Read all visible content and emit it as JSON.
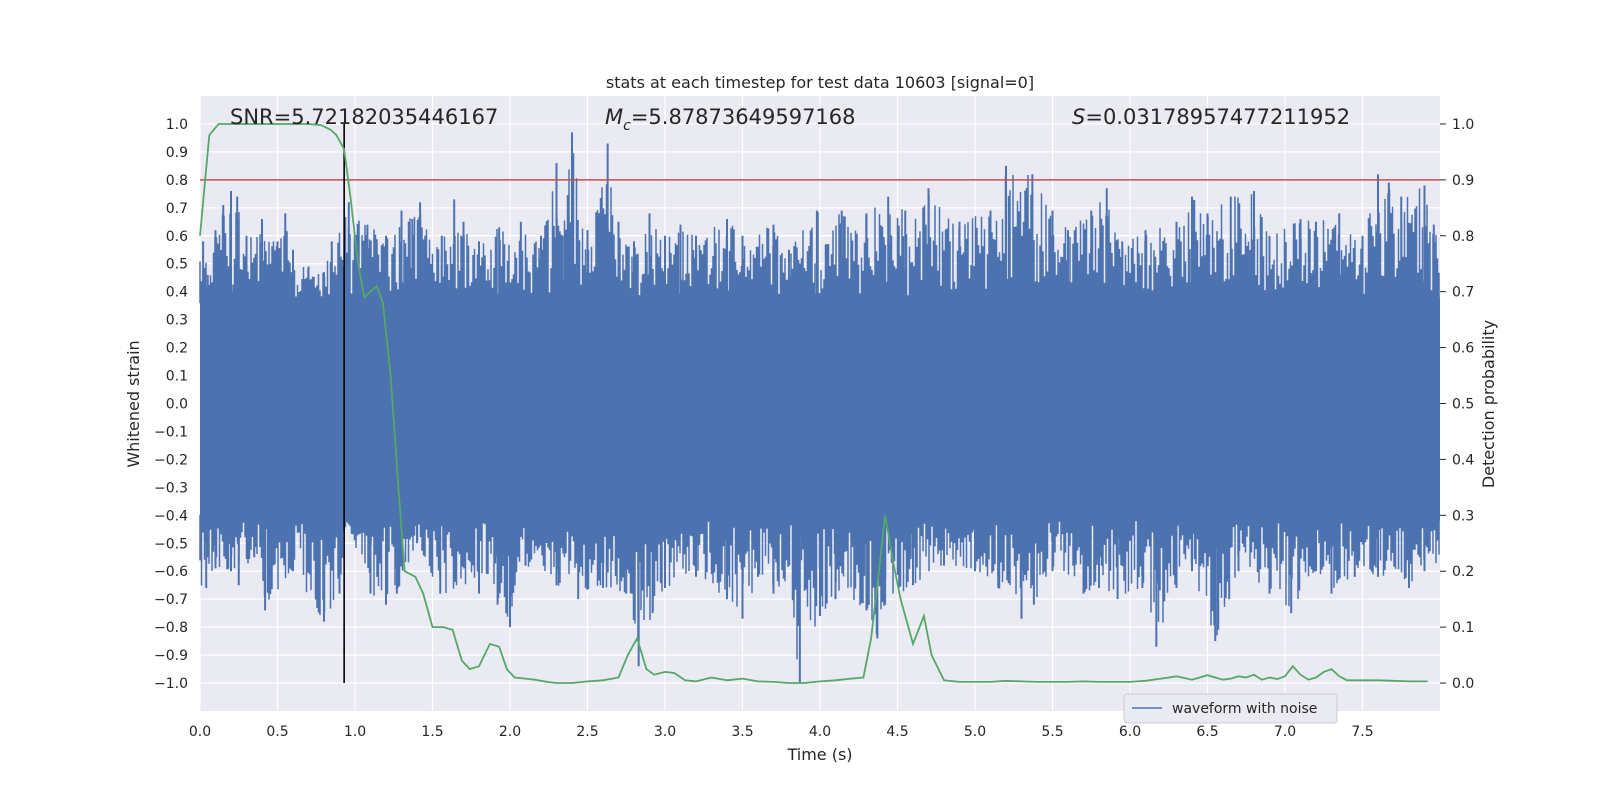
{
  "chart_data": {
    "type": "line",
    "title": "stats at each timestep for test data 10603 [signal=0]",
    "xlabel": "Time (s)",
    "ylabel": "Whitened strain",
    "y2label": "Detection probability",
    "xlim": [
      0.0,
      8.0
    ],
    "ylim": [
      -1.1,
      1.1
    ],
    "y2lim": [
      -0.05,
      1.05
    ],
    "grid": true,
    "x_ticks": [
      0.0,
      0.5,
      1.0,
      1.5,
      2.0,
      2.5,
      3.0,
      3.5,
      4.0,
      4.5,
      5.0,
      5.5,
      6.0,
      6.5,
      7.0,
      7.5
    ],
    "x_tick_labels": [
      "0.0",
      "0.5",
      "1.0",
      "1.5",
      "2.0",
      "2.5",
      "3.0",
      "3.5",
      "4.0",
      "4.5",
      "5.0",
      "5.5",
      "6.0",
      "6.5",
      "7.0",
      "7.5"
    ],
    "y_ticks": [
      1.0,
      0.9,
      0.8,
      0.7,
      0.6,
      0.5,
      0.4,
      0.3,
      0.2,
      0.1,
      0.0,
      -0.1,
      -0.2,
      -0.3,
      -0.4,
      -0.5,
      -0.6,
      -0.7,
      -0.8,
      -0.9,
      -1.0
    ],
    "y_tick_labels": [
      "1.0",
      "0.9",
      "0.8",
      "0.7",
      "0.6",
      "0.5",
      "0.4",
      "0.3",
      "0.2",
      "0.1",
      "0.0",
      "−0.1",
      "−0.2",
      "−0.3",
      "−0.4",
      "−0.5",
      "−0.6",
      "−0.7",
      "−0.8",
      "−0.9",
      "−1.0"
    ],
    "y2_ticks": [
      1.0,
      0.9,
      0.8,
      0.7,
      0.6,
      0.5,
      0.4,
      0.3,
      0.2,
      0.1,
      0.0
    ],
    "y2_tick_labels": [
      "1.0",
      "0.9",
      "0.8",
      "0.7",
      "0.6",
      "0.5",
      "0.4",
      "0.3",
      "0.2",
      "0.1",
      "0.0"
    ],
    "annotations": {
      "snr": "SNR=5.72182035446167",
      "mc_symbol": "M",
      "mc_sub": "c",
      "mc_value": "=5.87873649597168",
      "s_symbol": "S",
      "s_value": "=0.03178957477211952"
    },
    "legend": {
      "label": "waveform with noise",
      "placement": "lower-right"
    },
    "threshold_line": {
      "axis": "y2",
      "value": 0.9,
      "color": "#c44e52"
    },
    "vertical_marker": {
      "x": 0.93,
      "ymin": -1.0,
      "ymax": 1.0,
      "color": "#000000"
    },
    "waveform": {
      "name": "waveform with noise",
      "color": "#4c72b0",
      "core_band": [
        -0.42,
        0.38
      ],
      "upper_spikes": [
        [
          0.02,
          0.58
        ],
        [
          0.05,
          0.46
        ],
        [
          0.1,
          0.62
        ],
        [
          0.15,
          0.71
        ],
        [
          0.2,
          0.76
        ],
        [
          0.24,
          0.74
        ],
        [
          0.3,
          0.6
        ],
        [
          0.4,
          0.66
        ],
        [
          0.5,
          0.58
        ],
        [
          0.55,
          0.68
        ],
        [
          0.6,
          0.55
        ],
        [
          0.7,
          0.49
        ],
        [
          0.8,
          0.47
        ],
        [
          0.85,
          0.58
        ],
        [
          0.96,
          0.72
        ],
        [
          1.08,
          0.64
        ],
        [
          1.2,
          0.6
        ],
        [
          1.3,
          0.69
        ],
        [
          1.37,
          0.66
        ],
        [
          1.42,
          0.72
        ],
        [
          1.56,
          0.6
        ],
        [
          1.64,
          0.73
        ],
        [
          1.7,
          0.65
        ],
        [
          1.8,
          0.58
        ],
        [
          1.93,
          0.63
        ],
        [
          2.07,
          0.65
        ],
        [
          2.2,
          0.6
        ],
        [
          2.3,
          0.86
        ],
        [
          2.34,
          0.6
        ],
        [
          2.4,
          0.97
        ],
        [
          2.5,
          0.62
        ],
        [
          2.63,
          0.93
        ],
        [
          2.7,
          0.65
        ],
        [
          2.8,
          0.58
        ],
        [
          2.9,
          0.68
        ],
        [
          3.0,
          0.6
        ],
        [
          3.1,
          0.64
        ],
        [
          3.2,
          0.6
        ],
        [
          3.4,
          0.66
        ],
        [
          3.5,
          0.6
        ],
        [
          3.7,
          0.64
        ],
        [
          3.8,
          0.55
        ],
        [
          3.98,
          0.69
        ],
        [
          4.14,
          0.69
        ],
        [
          4.3,
          0.68
        ],
        [
          4.44,
          0.74
        ],
        [
          4.55,
          0.69
        ],
        [
          4.7,
          0.77
        ],
        [
          4.9,
          0.65
        ],
        [
          5.1,
          0.69
        ],
        [
          5.2,
          0.85
        ],
        [
          5.37,
          0.82
        ],
        [
          5.5,
          0.69
        ],
        [
          5.6,
          0.62
        ],
        [
          5.75,
          0.69
        ],
        [
          5.85,
          0.77
        ],
        [
          5.95,
          0.58
        ],
        [
          6.1,
          0.62
        ],
        [
          6.3,
          0.65
        ],
        [
          6.4,
          0.74
        ],
        [
          6.5,
          0.68
        ],
        [
          6.65,
          0.74
        ],
        [
          6.8,
          0.76
        ],
        [
          6.9,
          0.6
        ],
        [
          7.1,
          0.66
        ],
        [
          7.2,
          0.65
        ],
        [
          7.35,
          0.68
        ],
        [
          7.5,
          0.6
        ],
        [
          7.6,
          0.82
        ],
        [
          7.67,
          0.79
        ],
        [
          7.75,
          0.74
        ],
        [
          7.9,
          0.78
        ],
        [
          7.96,
          0.64
        ]
      ],
      "lower_spikes": [
        [
          0.04,
          -0.66
        ],
        [
          0.1,
          -0.59
        ],
        [
          0.2,
          -0.6
        ],
        [
          0.25,
          -0.65
        ],
        [
          0.35,
          -0.55
        ],
        [
          0.42,
          -0.74
        ],
        [
          0.6,
          -0.6
        ],
        [
          0.8,
          -0.78
        ],
        [
          0.9,
          -0.68
        ],
        [
          0.95,
          -0.42
        ],
        [
          1.1,
          -0.68
        ],
        [
          1.2,
          -0.72
        ],
        [
          1.27,
          -0.68
        ],
        [
          1.4,
          -0.5
        ],
        [
          1.55,
          -0.68
        ],
        [
          1.8,
          -0.68
        ],
        [
          1.92,
          -0.72
        ],
        [
          2.0,
          -0.8
        ],
        [
          2.1,
          -0.58
        ],
        [
          2.3,
          -0.65
        ],
        [
          2.44,
          -0.7
        ],
        [
          2.6,
          -0.66
        ],
        [
          2.75,
          -0.68
        ],
        [
          2.83,
          -0.94
        ],
        [
          2.92,
          -0.75
        ],
        [
          3.0,
          -0.66
        ],
        [
          3.2,
          -0.62
        ],
        [
          3.4,
          -0.7
        ],
        [
          3.5,
          -0.77
        ],
        [
          3.6,
          -0.62
        ],
        [
          3.7,
          -0.68
        ],
        [
          3.87,
          -1.0
        ],
        [
          4.0,
          -0.76
        ],
        [
          4.1,
          -0.7
        ],
        [
          4.3,
          -0.74
        ],
        [
          4.37,
          -0.84
        ],
        [
          4.42,
          -0.72
        ],
        [
          4.6,
          -0.65
        ],
        [
          4.8,
          -0.58
        ],
        [
          5.0,
          -0.6
        ],
        [
          5.15,
          -0.66
        ],
        [
          5.3,
          -0.77
        ],
        [
          5.38,
          -0.72
        ],
        [
          5.5,
          -0.6
        ],
        [
          5.7,
          -0.68
        ],
        [
          5.8,
          -0.66
        ],
        [
          5.92,
          -0.7
        ],
        [
          6.08,
          -0.66
        ],
        [
          6.17,
          -0.87
        ],
        [
          6.3,
          -0.66
        ],
        [
          6.4,
          -0.6
        ],
        [
          6.55,
          -0.85
        ],
        [
          6.64,
          -0.7
        ],
        [
          6.7,
          -0.6
        ],
        [
          6.9,
          -0.68
        ],
        [
          7.04,
          -0.75
        ],
        [
          7.2,
          -0.6
        ],
        [
          7.3,
          -0.68
        ],
        [
          7.45,
          -0.62
        ],
        [
          7.6,
          -0.62
        ],
        [
          7.8,
          -0.66
        ],
        [
          7.9,
          -0.6
        ]
      ]
    },
    "detection_probability": {
      "name": "detection probability",
      "color": "#55a868",
      "x": [
        0.0,
        0.06,
        0.12,
        0.2,
        0.3,
        0.4,
        0.5,
        0.6,
        0.7,
        0.78,
        0.84,
        0.88,
        0.93,
        0.97,
        1.02,
        1.06,
        1.1,
        1.14,
        1.18,
        1.23,
        1.28,
        1.32,
        1.39,
        1.44,
        1.5,
        1.57,
        1.63,
        1.69,
        1.74,
        1.8,
        1.87,
        1.93,
        1.98,
        2.03,
        2.1,
        2.16,
        2.24,
        2.3,
        2.4,
        2.5,
        2.6,
        2.7,
        2.76,
        2.82,
        2.88,
        2.93,
        3.0,
        3.06,
        3.13,
        3.2,
        3.3,
        3.4,
        3.5,
        3.6,
        3.7,
        3.8,
        3.9,
        4.0,
        4.1,
        4.2,
        4.28,
        4.33,
        4.38,
        4.42,
        4.47,
        4.52,
        4.57,
        4.6,
        4.67,
        4.72,
        4.8,
        4.9,
        5.0,
        5.1,
        5.2,
        5.3,
        5.4,
        5.5,
        5.6,
        5.7,
        5.8,
        5.9,
        6.0,
        6.1,
        6.2,
        6.25,
        6.3,
        6.35,
        6.4,
        6.45,
        6.5,
        6.55,
        6.6,
        6.65,
        6.7,
        6.75,
        6.8,
        6.85,
        6.9,
        6.95,
        7.0,
        7.05,
        7.1,
        7.15,
        7.2,
        7.25,
        7.3,
        7.35,
        7.4,
        7.5,
        7.6,
        7.7,
        7.8,
        7.92
      ],
      "values": [
        0.8,
        0.98,
        1.0,
        1.0,
        1.0,
        1.0,
        1.0,
        1.0,
        1.0,
        0.998,
        0.99,
        0.98,
        0.955,
        0.87,
        0.75,
        0.69,
        0.7,
        0.71,
        0.68,
        0.55,
        0.35,
        0.2,
        0.19,
        0.16,
        0.1,
        0.1,
        0.095,
        0.04,
        0.025,
        0.03,
        0.07,
        0.065,
        0.025,
        0.01,
        0.008,
        0.006,
        0.002,
        0.0,
        0.0,
        0.003,
        0.005,
        0.01,
        0.05,
        0.08,
        0.025,
        0.015,
        0.02,
        0.018,
        0.005,
        0.003,
        0.01,
        0.005,
        0.008,
        0.003,
        0.002,
        0.0,
        0.0,
        0.003,
        0.005,
        0.008,
        0.01,
        0.08,
        0.2,
        0.3,
        0.22,
        0.15,
        0.1,
        0.07,
        0.12,
        0.05,
        0.005,
        0.002,
        0.002,
        0.002,
        0.004,
        0.003,
        0.002,
        0.002,
        0.002,
        0.003,
        0.002,
        0.002,
        0.002,
        0.004,
        0.008,
        0.01,
        0.012,
        0.009,
        0.006,
        0.01,
        0.014,
        0.01,
        0.006,
        0.008,
        0.012,
        0.01,
        0.015,
        0.006,
        0.01,
        0.007,
        0.012,
        0.03,
        0.015,
        0.006,
        0.01,
        0.02,
        0.025,
        0.012,
        0.005,
        0.005,
        0.005,
        0.004,
        0.003,
        0.003
      ]
    }
  }
}
